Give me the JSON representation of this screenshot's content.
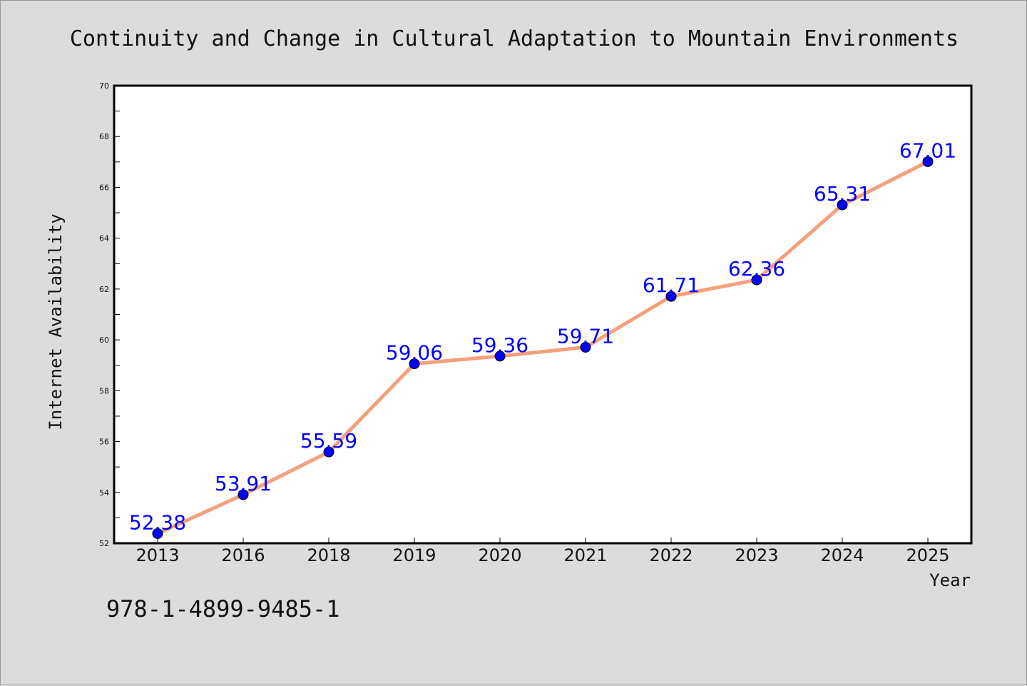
{
  "chart_data": {
    "type": "line",
    "title": "Continuity and Change in Cultural Adaptation to Mountain Environments",
    "xlabel": "Year",
    "ylabel": "Internet Availability",
    "categories": [
      "2013",
      "2016",
      "2018",
      "2019",
      "2020",
      "2021",
      "2022",
      "2023",
      "2024",
      "2025"
    ],
    "values": [
      52.38,
      53.91,
      55.59,
      59.06,
      59.36,
      59.71,
      61.71,
      62.36,
      65.31,
      67.01
    ],
    "data_labels": [
      "52.38",
      "53.91",
      "55.59",
      "59.06",
      "59.36",
      "59.71",
      "61.71",
      "62.36",
      "65.31",
      "67.01"
    ],
    "ylim": [
      52,
      70
    ],
    "yticks": [
      "52",
      "54",
      "56",
      "58",
      "60",
      "62",
      "64",
      "66",
      "68",
      "70"
    ],
    "grid": false,
    "line_color": "#f4a07c",
    "marker_color": "#0000ff",
    "label_color": "#0000ff"
  },
  "footer": {
    "isbn": "978-1-4899-9485-1"
  }
}
